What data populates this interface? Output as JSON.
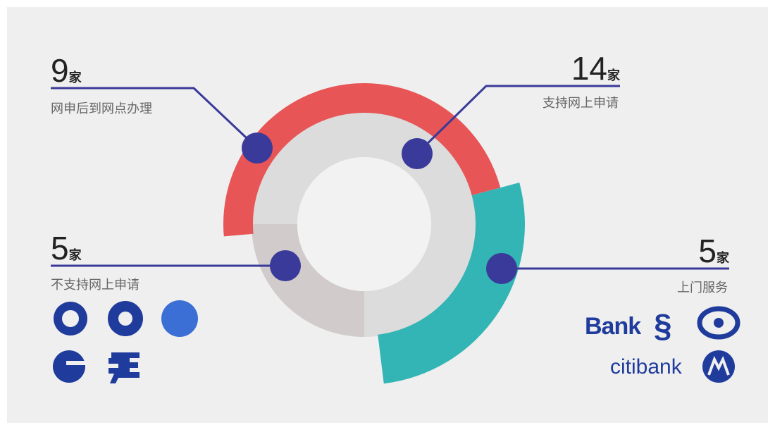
{
  "items": [
    {
      "value": 9,
      "unit": "家",
      "label": "网申后到网点办理"
    },
    {
      "value": 14,
      "unit": "家",
      "label": "支持网上申请"
    },
    {
      "value": 5,
      "unit": "家",
      "label": "不支持网上申请"
    },
    {
      "value": 5,
      "unit": "家",
      "label": "上门服务"
    }
  ],
  "logos": [
    "Bank",
    "citibank"
  ]
}
